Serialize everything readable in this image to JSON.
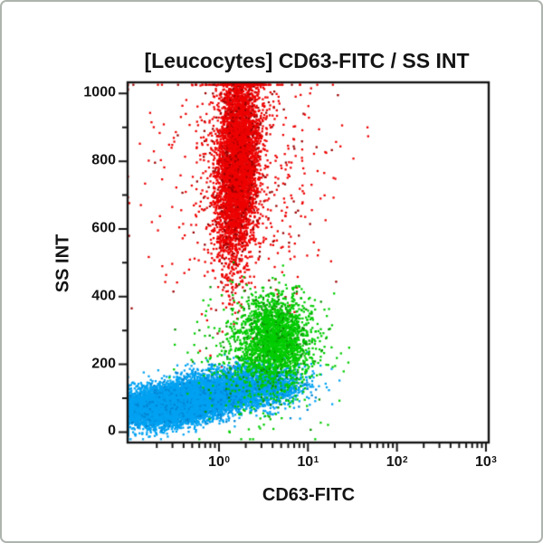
{
  "frame": {
    "border_color": "#aeb4ae",
    "background": "#ffffff"
  },
  "chart_data": {
    "type": "scatter",
    "subtype": "flow-cytometry-dot-plot",
    "title": "[Leucocytes] CD63-FITC / SS INT",
    "xlabel": "CD63-FITC",
    "ylabel": "SS INT",
    "x_scale": "log",
    "x_log_range": [
      -1.027,
      3.031
    ],
    "x_major_ticks": [
      {
        "value": 1,
        "label_base": "10",
        "label_exp": "0"
      },
      {
        "value": 10,
        "label_base": "10",
        "label_exp": "1"
      },
      {
        "value": 100,
        "label_base": "10",
        "label_exp": "2"
      },
      {
        "value": 1000,
        "label_base": "10",
        "label_exp": "3"
      }
    ],
    "y_scale": "linear",
    "y_range": [
      -31,
      1033
    ],
    "y_major_ticks": [
      {
        "value": 0,
        "label": "0"
      },
      {
        "value": 200,
        "label": "200"
      },
      {
        "value": 400,
        "label": "400"
      },
      {
        "value": 600,
        "label": "600"
      },
      {
        "value": 800,
        "label": "800"
      },
      {
        "value": 1000,
        "label": "1000"
      }
    ],
    "y_minor_values": [
      100,
      300,
      500,
      700,
      900
    ],
    "grid": false,
    "legend": "none",
    "axis_color": "#141414",
    "seed": 20240613,
    "populations": [
      {
        "name": "red-high-ss-cluster",
        "description": "dense vertical band, CD63 ~0.7-3, SS ~480 to >1000 (clipped at top edge)",
        "color": "#ee0000",
        "color_dark": "#9b0000",
        "count": 5200,
        "x_log_mean": 0.21,
        "x_log_sd": 0.115,
        "ss_mean": 800,
        "ss_sd": 150,
        "x_slope": 0.00018
      },
      {
        "name": "red-scatter",
        "description": "sparse red outliers, CD63 up to ~200, SS ~400-1000",
        "color": "#ee0000",
        "color_dark": "#9b0000",
        "count": 600,
        "x_log_mean": 0.28,
        "x_log_sd": 0.5,
        "ss_mean": 770,
        "ss_sd": 195
      },
      {
        "name": "cyan-low-ss-wedge",
        "description": "dense wedge from left edge, CD63 ~0.09-2, SS ~25-170 rising with CD63",
        "color": "#00a2f2",
        "color_dark": "#0085d4",
        "count": 9000,
        "x_log_mean": -0.42,
        "x_log_sd": 0.34,
        "ss_mean": 88,
        "ss_sd": 30,
        "ss_slope": 38
      },
      {
        "name": "cyan-tail",
        "description": "cyan extension under green cluster, CD63 ~1-10, SS ~80-200",
        "color": "#00a2f2",
        "color_dark": "#0085d4",
        "count": 1900,
        "x_log_mean": 0.42,
        "x_log_sd": 0.27,
        "ss_mean": 138,
        "ss_sd": 32
      },
      {
        "name": "green-mid-cluster",
        "description": "green cluster, CD63 ~1.5-10, SS ~130-430",
        "color": "#00cc00",
        "color_dark": "#089200",
        "count": 2000,
        "x_log_mean": 0.63,
        "x_log_sd": 0.2,
        "ss_mean": 275,
        "ss_sd": 62
      },
      {
        "name": "green-scatter",
        "description": "sparse green dots mixed into cyan region and above",
        "color": "#00cc00",
        "color_dark": "#089200",
        "count": 480,
        "x_log_mean": 0.45,
        "x_log_sd": 0.36,
        "ss_mean": 220,
        "ss_sd": 100
      }
    ]
  }
}
